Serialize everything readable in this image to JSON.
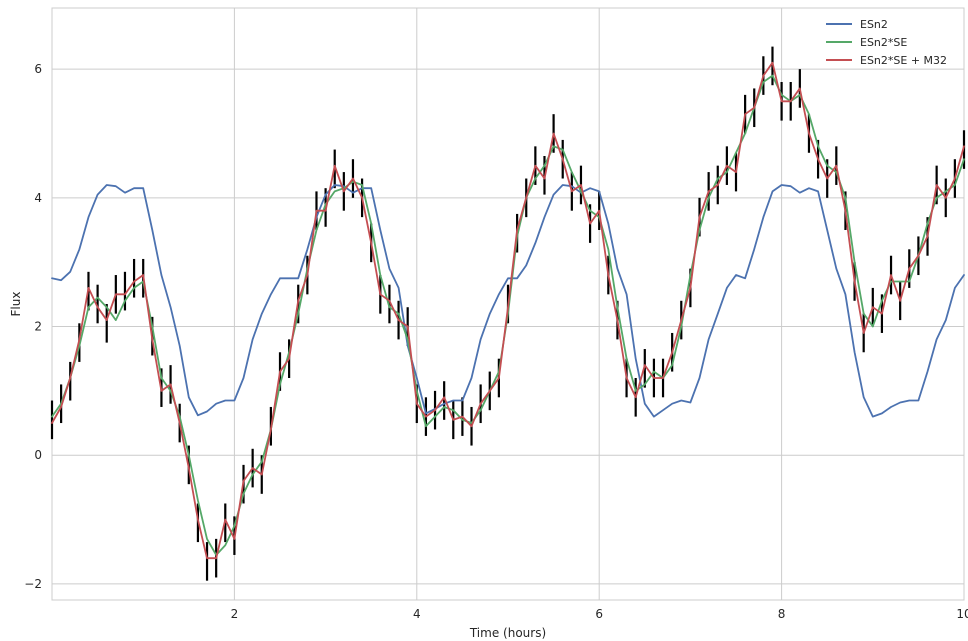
{
  "chart_data": {
    "type": "line",
    "xlabel": "Time (hours)",
    "ylabel": "Flux",
    "xlim": [
      0.0,
      10.0
    ],
    "ylim": [
      -2.25,
      6.95
    ],
    "x_ticks": [
      2,
      4,
      6,
      8,
      10
    ],
    "x_tick_labels": [
      "2",
      "4",
      "6",
      "8",
      "10"
    ],
    "y_ticks": [
      -2,
      0,
      2,
      4,
      6
    ],
    "y_tick_labels": [
      "−2",
      "0",
      "2",
      "4",
      "6"
    ],
    "grid": true,
    "legend_position": "top-right",
    "series": [
      {
        "name": "ESn2",
        "color": "#4c72b0",
        "x": [
          0.0,
          0.1,
          0.2,
          0.3,
          0.4,
          0.5,
          0.6,
          0.7,
          0.8,
          0.9,
          1.0,
          1.1,
          1.2,
          1.3,
          1.4,
          1.5,
          1.6,
          1.7,
          1.8,
          1.9,
          2.0,
          2.1,
          2.2,
          2.3,
          2.4,
          2.5,
          2.6,
          2.7,
          2.8,
          2.9,
          3.0,
          3.1,
          3.2,
          3.3,
          3.4,
          3.5,
          3.6,
          3.7,
          3.8,
          3.9,
          4.0,
          4.1,
          4.2,
          4.3,
          4.4,
          4.5,
          4.6,
          4.7,
          4.8,
          4.9,
          5.0,
          5.1,
          5.2,
          5.3,
          5.4,
          5.5,
          5.6,
          5.7,
          5.8,
          5.9,
          6.0,
          6.1,
          6.2,
          6.3,
          6.4,
          6.5,
          6.6,
          6.7,
          6.8,
          6.9,
          7.0,
          7.1,
          7.2,
          7.3,
          7.4,
          7.5,
          7.6,
          7.7,
          7.8,
          7.9,
          8.0,
          8.1,
          8.2,
          8.3,
          8.4,
          8.5,
          8.6,
          8.7,
          8.8,
          8.9,
          9.0,
          9.1,
          9.2,
          9.3,
          9.4,
          9.5,
          9.6,
          9.7,
          9.8,
          9.9,
          10.0
        ],
        "y": [
          2.75,
          2.72,
          2.85,
          3.2,
          3.7,
          4.05,
          4.2,
          4.18,
          4.08,
          4.15,
          4.15,
          3.5,
          2.8,
          2.3,
          1.7,
          0.9,
          0.62,
          0.68,
          0.8,
          0.85,
          0.85,
          1.2,
          1.8,
          2.2,
          2.5,
          2.75,
          2.75,
          2.75,
          3.2,
          3.7,
          4.05,
          4.2,
          4.18,
          4.08,
          4.15,
          4.15,
          3.5,
          2.9,
          2.6,
          1.7,
          1.2,
          0.65,
          0.72,
          0.8,
          0.85,
          0.85,
          1.2,
          1.8,
          2.2,
          2.5,
          2.75,
          2.75,
          2.95,
          3.3,
          3.7,
          4.05,
          4.2,
          4.18,
          4.08,
          4.15,
          4.1,
          3.6,
          2.9,
          2.5,
          1.5,
          0.8,
          0.6,
          0.7,
          0.8,
          0.85,
          0.82,
          1.2,
          1.8,
          2.2,
          2.6,
          2.8,
          2.75,
          3.2,
          3.7,
          4.1,
          4.2,
          4.18,
          4.08,
          4.15,
          4.1,
          3.5,
          2.9,
          2.5,
          1.6,
          0.9,
          0.6,
          0.65,
          0.75,
          0.82,
          0.85,
          0.85,
          1.3,
          1.8,
          2.1,
          2.6,
          2.8
        ]
      },
      {
        "name": "ESn2*SE",
        "color": "#55a868",
        "x": [
          0.0,
          0.1,
          0.2,
          0.3,
          0.4,
          0.5,
          0.6,
          0.7,
          0.8,
          0.9,
          1.0,
          1.1,
          1.2,
          1.3,
          1.4,
          1.5,
          1.6,
          1.7,
          1.8,
          1.9,
          2.0,
          2.1,
          2.2,
          2.3,
          2.4,
          2.5,
          2.6,
          2.7,
          2.8,
          2.9,
          3.0,
          3.1,
          3.2,
          3.3,
          3.4,
          3.5,
          3.6,
          3.7,
          3.8,
          3.9,
          4.0,
          4.1,
          4.2,
          4.3,
          4.4,
          4.5,
          4.6,
          4.7,
          4.8,
          4.9,
          5.0,
          5.1,
          5.2,
          5.3,
          5.4,
          5.5,
          5.6,
          5.7,
          5.8,
          5.9,
          6.0,
          6.1,
          6.2,
          6.3,
          6.4,
          6.5,
          6.6,
          6.7,
          6.8,
          6.9,
          7.0,
          7.1,
          7.2,
          7.3,
          7.4,
          7.5,
          7.6,
          7.7,
          7.8,
          7.9,
          8.0,
          8.1,
          8.2,
          8.3,
          8.4,
          8.5,
          8.6,
          8.7,
          8.8,
          8.9,
          9.0,
          9.1,
          9.2,
          9.3,
          9.4,
          9.5,
          9.6,
          9.7,
          9.8,
          9.9,
          10.0
        ],
        "y": [
          0.6,
          0.8,
          1.2,
          1.7,
          2.3,
          2.45,
          2.3,
          2.1,
          2.4,
          2.6,
          2.7,
          2.0,
          1.2,
          1.0,
          0.6,
          0.0,
          -0.7,
          -1.3,
          -1.55,
          -1.4,
          -1.1,
          -0.6,
          -0.3,
          -0.1,
          0.4,
          1.1,
          1.6,
          2.2,
          2.9,
          3.5,
          3.9,
          4.1,
          4.15,
          4.25,
          4.2,
          3.6,
          2.8,
          2.3,
          2.2,
          1.8,
          1.0,
          0.45,
          0.6,
          0.75,
          0.7,
          0.55,
          0.5,
          0.7,
          1.0,
          1.3,
          2.2,
          3.4,
          4.0,
          4.3,
          4.5,
          4.8,
          4.75,
          4.4,
          4.1,
          3.8,
          3.7,
          3.2,
          2.3,
          1.5,
          1.0,
          1.1,
          1.3,
          1.2,
          1.4,
          2.0,
          2.8,
          3.5,
          4.0,
          4.3,
          4.4,
          4.7,
          5.0,
          5.4,
          5.8,
          5.9,
          5.6,
          5.5,
          5.6,
          5.3,
          4.8,
          4.5,
          4.4,
          4.0,
          3.0,
          2.2,
          2.0,
          2.4,
          2.7,
          2.7,
          2.7,
          3.1,
          3.6,
          4.0,
          4.1,
          4.2,
          4.6
        ]
      },
      {
        "name": "ESn2*SE + M32",
        "color": "#c44e52",
        "x": [
          0.0,
          0.1,
          0.2,
          0.3,
          0.4,
          0.5,
          0.6,
          0.7,
          0.8,
          0.9,
          1.0,
          1.1,
          1.2,
          1.3,
          1.4,
          1.5,
          1.6,
          1.7,
          1.8,
          1.9,
          2.0,
          2.1,
          2.2,
          2.3,
          2.4,
          2.5,
          2.6,
          2.7,
          2.8,
          2.9,
          3.0,
          3.1,
          3.2,
          3.3,
          3.4,
          3.5,
          3.6,
          3.7,
          3.8,
          3.9,
          4.0,
          4.1,
          4.2,
          4.3,
          4.4,
          4.5,
          4.6,
          4.7,
          4.8,
          4.9,
          5.0,
          5.1,
          5.2,
          5.3,
          5.4,
          5.5,
          5.6,
          5.7,
          5.8,
          5.9,
          6.0,
          6.1,
          6.2,
          6.3,
          6.4,
          6.5,
          6.6,
          6.7,
          6.8,
          6.9,
          7.0,
          7.1,
          7.2,
          7.3,
          7.4,
          7.5,
          7.6,
          7.7,
          7.8,
          7.9,
          8.0,
          8.1,
          8.2,
          8.3,
          8.4,
          8.5,
          8.6,
          8.7,
          8.8,
          8.9,
          9.0,
          9.1,
          9.2,
          9.3,
          9.4,
          9.5,
          9.6,
          9.7,
          9.8,
          9.9,
          10.0
        ],
        "y": [
          0.5,
          0.75,
          1.2,
          1.8,
          2.6,
          2.3,
          2.1,
          2.5,
          2.5,
          2.7,
          2.8,
          1.8,
          1.0,
          1.1,
          0.5,
          -0.2,
          -1.0,
          -1.6,
          -1.6,
          -1.0,
          -1.3,
          -0.4,
          -0.2,
          -0.3,
          0.4,
          1.3,
          1.5,
          2.4,
          2.8,
          3.8,
          3.8,
          4.5,
          4.1,
          4.3,
          4.0,
          3.3,
          2.5,
          2.4,
          2.1,
          2.0,
          0.8,
          0.6,
          0.7,
          0.9,
          0.55,
          0.6,
          0.45,
          0.8,
          1.0,
          1.2,
          2.3,
          3.5,
          4.0,
          4.5,
          4.3,
          5.0,
          4.6,
          4.1,
          4.2,
          3.6,
          3.8,
          2.8,
          2.1,
          1.2,
          0.9,
          1.4,
          1.2,
          1.2,
          1.6,
          2.1,
          2.6,
          3.7,
          4.1,
          4.2,
          4.5,
          4.4,
          5.3,
          5.4,
          5.9,
          6.1,
          5.5,
          5.5,
          5.7,
          5.0,
          4.6,
          4.3,
          4.5,
          3.8,
          2.7,
          1.9,
          2.3,
          2.2,
          2.8,
          2.4,
          2.9,
          3.1,
          3.4,
          4.2,
          4.0,
          4.3,
          4.8
        ]
      }
    ],
    "error_bars": {
      "color": "#000000",
      "x": [
        0.0,
        0.1,
        0.2,
        0.3,
        0.4,
        0.5,
        0.6,
        0.7,
        0.8,
        0.9,
        1.0,
        1.1,
        1.2,
        1.3,
        1.4,
        1.5,
        1.6,
        1.7,
        1.8,
        1.9,
        2.0,
        2.1,
        2.2,
        2.3,
        2.4,
        2.5,
        2.6,
        2.7,
        2.8,
        2.9,
        3.0,
        3.1,
        3.2,
        3.3,
        3.4,
        3.5,
        3.6,
        3.7,
        3.8,
        3.9,
        4.0,
        4.1,
        4.2,
        4.3,
        4.4,
        4.5,
        4.6,
        4.7,
        4.8,
        4.9,
        5.0,
        5.1,
        5.2,
        5.3,
        5.4,
        5.5,
        5.6,
        5.7,
        5.8,
        5.9,
        6.0,
        6.1,
        6.2,
        6.3,
        6.4,
        6.5,
        6.6,
        6.7,
        6.8,
        6.9,
        7.0,
        7.1,
        7.2,
        7.3,
        7.4,
        7.5,
        7.6,
        7.7,
        7.8,
        7.9,
        8.0,
        8.1,
        8.2,
        8.3,
        8.4,
        8.5,
        8.6,
        8.7,
        8.8,
        8.9,
        9.0,
        9.1,
        9.2,
        9.3,
        9.4,
        9.5,
        9.6,
        9.7,
        9.8,
        9.9,
        10.0
      ],
      "y": [
        0.55,
        0.8,
        1.15,
        1.75,
        2.55,
        2.35,
        2.05,
        2.5,
        2.55,
        2.75,
        2.75,
        1.85,
        1.05,
        1.1,
        0.5,
        -0.15,
        -1.05,
        -1.65,
        -1.6,
        -1.05,
        -1.25,
        -0.45,
        -0.2,
        -0.3,
        0.45,
        1.3,
        1.5,
        2.35,
        2.8,
        3.8,
        3.85,
        4.45,
        4.1,
        4.3,
        4.0,
        3.3,
        2.5,
        2.35,
        2.1,
        2.0,
        0.8,
        0.6,
        0.7,
        0.85,
        0.55,
        0.6,
        0.45,
        0.8,
        1.0,
        1.2,
        2.35,
        3.45,
        4.0,
        4.5,
        4.35,
        5.0,
        4.6,
        4.1,
        4.2,
        3.6,
        3.8,
        2.8,
        2.1,
        1.2,
        0.9,
        1.35,
        1.2,
        1.2,
        1.6,
        2.1,
        2.6,
        3.7,
        4.1,
        4.2,
        4.5,
        4.4,
        5.3,
        5.4,
        5.9,
        6.05,
        5.5,
        5.5,
        5.7,
        5.0,
        4.6,
        4.3,
        4.5,
        3.8,
        2.7,
        1.9,
        2.3,
        2.2,
        2.8,
        2.4,
        2.9,
        3.1,
        3.4,
        4.2,
        4.0,
        4.3,
        4.75
      ],
      "error": 0.3
    }
  }
}
